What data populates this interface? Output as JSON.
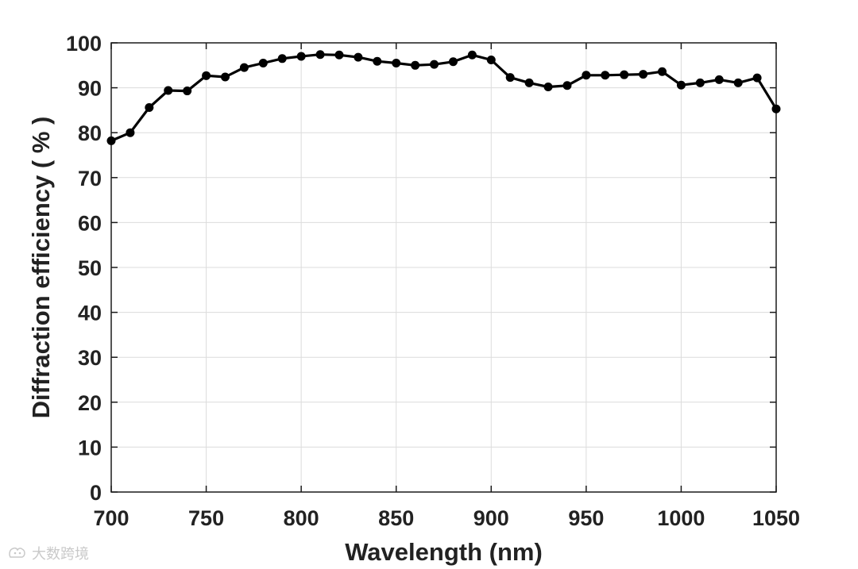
{
  "chart_data": {
    "type": "line",
    "title": "",
    "xlabel": "Wavelength  (nm)",
    "ylabel": "Diffraction efficiency ( % )",
    "xlim": [
      700,
      1050
    ],
    "ylim": [
      0,
      100
    ],
    "xticks": [
      700,
      750,
      800,
      850,
      900,
      950,
      1000,
      1050
    ],
    "yticks": [
      0,
      10,
      20,
      30,
      40,
      50,
      60,
      70,
      80,
      90,
      100
    ],
    "grid": true,
    "line_color": "#000000",
    "marker": "filled-circle",
    "series": [
      {
        "x": [
          700,
          710,
          720,
          730,
          740,
          750,
          760,
          770,
          780,
          790,
          800,
          810,
          820,
          830,
          840,
          850,
          860,
          870,
          880,
          890,
          900,
          910,
          920,
          930,
          940,
          950,
          960,
          970,
          980,
          990,
          1000,
          1010,
          1020,
          1030,
          1040,
          1050
        ],
        "values": [
          78.2,
          80.0,
          85.6,
          89.4,
          89.3,
          92.7,
          92.4,
          94.5,
          95.5,
          96.5,
          97.0,
          97.4,
          97.3,
          96.8,
          95.9,
          95.5,
          95.0,
          95.2,
          95.8,
          97.3,
          96.2,
          92.3,
          91.1,
          90.2,
          90.5,
          92.8,
          92.8,
          92.9,
          93.0,
          93.6,
          90.6,
          91.1,
          91.8,
          91.1,
          92.2,
          85.3
        ]
      }
    ]
  },
  "watermark": {
    "text": "大数跨境",
    "icon": "watermark-logo-icon"
  }
}
